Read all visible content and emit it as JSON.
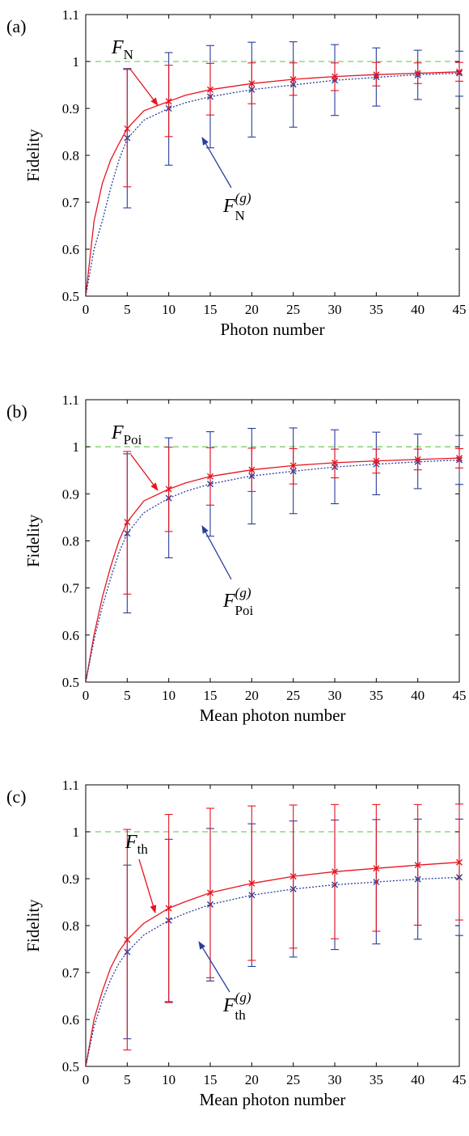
{
  "chart_data": [
    {
      "type": "line",
      "panel_label": "(a)",
      "xlabel": "Photon number",
      "ylabel": "Fidelity",
      "xlim": [
        0,
        45
      ],
      "ylim": [
        0.5,
        1.1
      ],
      "xticks": [
        0,
        5,
        10,
        15,
        20,
        25,
        30,
        35,
        40,
        45
      ],
      "yticks": [
        0.5,
        0.6,
        0.7,
        0.8,
        0.9,
        1,
        1.1
      ],
      "reference_line": {
        "y": 1,
        "style": "dashed",
        "color": "#7ccf6a"
      },
      "curves": [
        {
          "annotation": {
            "base": "F",
            "sub": "N",
            "sup": ""
          },
          "color": "#e8141f",
          "style": "solid",
          "x": [
            0,
            1,
            2,
            3,
            4,
            5,
            7,
            10,
            12,
            15,
            20,
            25,
            30,
            35,
            40,
            45
          ],
          "y": [
            0.5,
            0.66,
            0.74,
            0.79,
            0.825,
            0.857,
            0.895,
            0.915,
            0.928,
            0.94,
            0.953,
            0.962,
            0.968,
            0.972,
            0.975,
            0.978
          ]
        },
        {
          "annotation": {
            "base": "F",
            "sub": "N",
            "sup": "(g)"
          },
          "color": "#2a3e9a",
          "style": "dotted",
          "x": [
            0,
            1,
            2,
            3,
            4,
            5,
            7,
            10,
            12,
            15,
            20,
            25,
            30,
            35,
            40,
            45
          ],
          "y": [
            0.5,
            0.6,
            0.66,
            0.73,
            0.79,
            0.835,
            0.875,
            0.9,
            0.912,
            0.925,
            0.94,
            0.95,
            0.96,
            0.966,
            0.972,
            0.975
          ]
        }
      ],
      "errorbars": [
        {
          "color": "#2a3e9a",
          "x": [
            5,
            10,
            15,
            20,
            25,
            30,
            35,
            40,
            45
          ],
          "y": [
            0.837,
            0.9,
            0.925,
            0.94,
            0.951,
            0.96,
            0.967,
            0.971,
            0.975
          ],
          "lo": [
            0.688,
            0.779,
            0.816,
            0.839,
            0.86,
            0.885,
            0.905,
            0.919,
            0.926
          ],
          "hi": [
            0.985,
            1.019,
            1.034,
            1.041,
            1.042,
            1.036,
            1.029,
            1.024,
            1.022
          ]
        },
        {
          "color": "#e8141f",
          "x": [
            5,
            10,
            15,
            20,
            25,
            30,
            35,
            40,
            45
          ],
          "y": [
            0.857,
            0.915,
            0.94,
            0.953,
            0.962,
            0.968,
            0.972,
            0.975,
            0.978
          ],
          "lo": [
            0.733,
            0.84,
            0.886,
            0.91,
            0.928,
            0.938,
            0.948,
            0.953,
            0.958
          ],
          "hi": [
            0.983,
            0.992,
            0.996,
            0.997,
            0.997,
            0.997,
            0.998,
            0.997,
            0.998
          ]
        }
      ]
    },
    {
      "type": "line",
      "panel_label": "(b)",
      "xlabel": "Mean photon number",
      "ylabel": "Fidelity",
      "xlim": [
        0,
        45
      ],
      "ylim": [
        0.5,
        1.1
      ],
      "xticks": [
        0,
        5,
        10,
        15,
        20,
        25,
        30,
        35,
        40,
        45
      ],
      "yticks": [
        0.5,
        0.6,
        0.7,
        0.8,
        0.9,
        1,
        1.1
      ],
      "reference_line": {
        "y": 1,
        "style": "dashed",
        "color": "#7ccf6a"
      },
      "curves": [
        {
          "annotation": {
            "base": "F",
            "sub": "Poi",
            "sup": ""
          },
          "color": "#e8141f",
          "style": "solid",
          "x": [
            0,
            1,
            2,
            3,
            4,
            5,
            7,
            10,
            12,
            15,
            20,
            25,
            30,
            35,
            40,
            45
          ],
          "y": [
            0.5,
            0.6,
            0.68,
            0.745,
            0.8,
            0.84,
            0.885,
            0.91,
            0.923,
            0.937,
            0.951,
            0.96,
            0.966,
            0.97,
            0.973,
            0.976
          ]
        },
        {
          "annotation": {
            "base": "F",
            "sub": "Poi",
            "sup": "(g)"
          },
          "color": "#2a3e9a",
          "style": "dotted",
          "x": [
            0,
            1,
            2,
            3,
            4,
            5,
            7,
            10,
            12,
            15,
            20,
            25,
            30,
            35,
            40,
            45
          ],
          "y": [
            0.5,
            0.59,
            0.66,
            0.72,
            0.775,
            0.816,
            0.86,
            0.891,
            0.905,
            0.921,
            0.938,
            0.948,
            0.957,
            0.963,
            0.968,
            0.972
          ]
        }
      ],
      "errorbars": [
        {
          "color": "#2a3e9a",
          "x": [
            5,
            10,
            15,
            20,
            25,
            30,
            35,
            40,
            45
          ],
          "y": [
            0.816,
            0.891,
            0.921,
            0.938,
            0.948,
            0.957,
            0.963,
            0.968,
            0.972
          ],
          "lo": [
            0.647,
            0.764,
            0.81,
            0.836,
            0.858,
            0.879,
            0.898,
            0.911,
            0.92
          ],
          "hi": [
            0.985,
            1.019,
            1.032,
            1.039,
            1.04,
            1.036,
            1.031,
            1.027,
            1.024
          ]
        },
        {
          "color": "#e8141f",
          "x": [
            5,
            10,
            15,
            20,
            25,
            30,
            35,
            40,
            45
          ],
          "y": [
            0.84,
            0.91,
            0.937,
            0.951,
            0.96,
            0.966,
            0.97,
            0.973,
            0.976
          ],
          "lo": [
            0.687,
            0.82,
            0.876,
            0.905,
            0.921,
            0.934,
            0.944,
            0.951,
            0.955
          ],
          "hi": [
            0.99,
            0.999,
            0.998,
            0.997,
            0.996,
            0.995,
            0.995,
            0.995,
            0.996
          ]
        }
      ]
    },
    {
      "type": "line",
      "panel_label": "(c)",
      "xlabel": "Mean photon number",
      "ylabel": "Fidelity",
      "xlim": [
        0,
        45
      ],
      "ylim": [
        0.5,
        1.1
      ],
      "xticks": [
        0,
        5,
        10,
        15,
        20,
        25,
        30,
        35,
        40,
        45
      ],
      "yticks": [
        0.5,
        0.6,
        0.7,
        0.8,
        0.9,
        1,
        1.1
      ],
      "reference_line": {
        "y": 1,
        "style": "dashed",
        "color": "#7ccf6a"
      },
      "curves": [
        {
          "annotation": {
            "base": "F",
            "sub": "th",
            "sup": ""
          },
          "color": "#e8141f",
          "style": "solid",
          "x": [
            0,
            1,
            2,
            3,
            4,
            5,
            7,
            10,
            12,
            15,
            20,
            25,
            30,
            35,
            40,
            45
          ],
          "y": [
            0.5,
            0.6,
            0.66,
            0.71,
            0.745,
            0.77,
            0.805,
            0.837,
            0.851,
            0.87,
            0.89,
            0.905,
            0.915,
            0.922,
            0.929,
            0.935
          ]
        },
        {
          "annotation": {
            "base": "F",
            "sub": "th",
            "sup": "(g)"
          },
          "color": "#2a3e9a",
          "style": "dotted",
          "x": [
            0,
            1,
            2,
            3,
            4,
            5,
            7,
            10,
            12,
            15,
            20,
            25,
            30,
            35,
            40,
            45
          ],
          "y": [
            0.5,
            0.585,
            0.64,
            0.685,
            0.72,
            0.744,
            0.78,
            0.811,
            0.826,
            0.845,
            0.865,
            0.878,
            0.887,
            0.893,
            0.899,
            0.903
          ]
        }
      ],
      "errorbars": [
        {
          "color": "#2a3e9a",
          "x": [
            5,
            10,
            15,
            20,
            25,
            30,
            35,
            40,
            45
          ],
          "y": [
            0.744,
            0.811,
            0.845,
            0.865,
            0.878,
            0.887,
            0.893,
            0.899,
            0.903
          ],
          "lo": [
            0.559,
            0.638,
            0.682,
            0.713,
            0.733,
            0.749,
            0.761,
            0.771,
            0.779
          ],
          "hi": [
            0.929,
            0.984,
            1.007,
            1.017,
            1.023,
            1.025,
            1.026,
            1.027,
            1.027
          ]
        },
        {
          "color": "#e8141f",
          "x": [
            5,
            10,
            15,
            20,
            25,
            30,
            35,
            40,
            45
          ],
          "y": [
            0.77,
            0.837,
            0.87,
            0.89,
            0.905,
            0.915,
            0.922,
            0.929,
            0.935
          ],
          "lo": [
            0.535,
            0.636,
            0.689,
            0.726,
            0.752,
            0.772,
            0.788,
            0.801,
            0.812
          ],
          "hi": [
            1.005,
            1.037,
            1.05,
            1.055,
            1.057,
            1.058,
            1.058,
            1.058,
            1.059
          ]
        }
      ]
    }
  ]
}
